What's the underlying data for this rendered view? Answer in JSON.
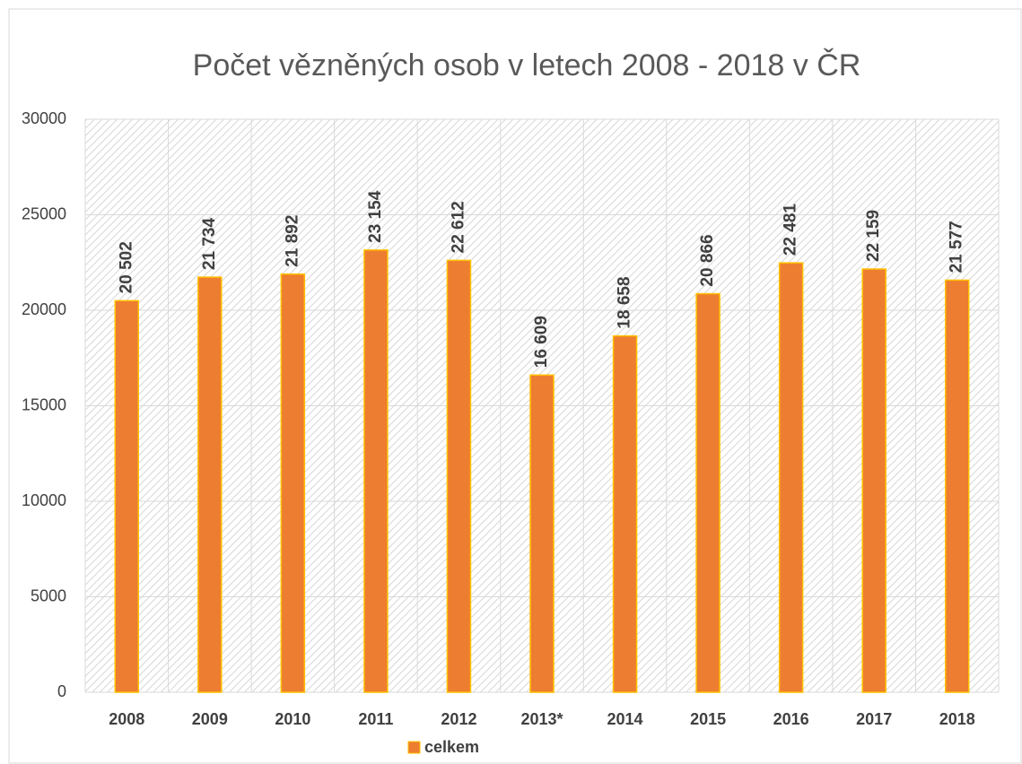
{
  "chart_data": {
    "type": "bar",
    "title": "Počet vězněných osob v letech 2008 - 2018 v ČR",
    "categories": [
      "2008",
      "2009",
      "2010",
      "2011",
      "2012",
      "2013*",
      "2014",
      "2015",
      "2016",
      "2017",
      "2018"
    ],
    "series": [
      {
        "name": "celkem",
        "color": "#ED7D31",
        "values": [
          20502,
          21734,
          21892,
          23154,
          22612,
          16609,
          18658,
          20866,
          22481,
          22159,
          21577
        ],
        "value_labels": [
          "20 502",
          "21 734",
          "21 892",
          "23 154",
          "22 612",
          "16 609",
          "18 658",
          "20 866",
          "22 481",
          "22 159",
          "21 577"
        ]
      }
    ],
    "ylim": [
      0,
      30000
    ],
    "yticks": [
      0,
      5000,
      10000,
      15000,
      20000,
      25000,
      30000
    ],
    "grid": true,
    "legend": "bottom"
  }
}
